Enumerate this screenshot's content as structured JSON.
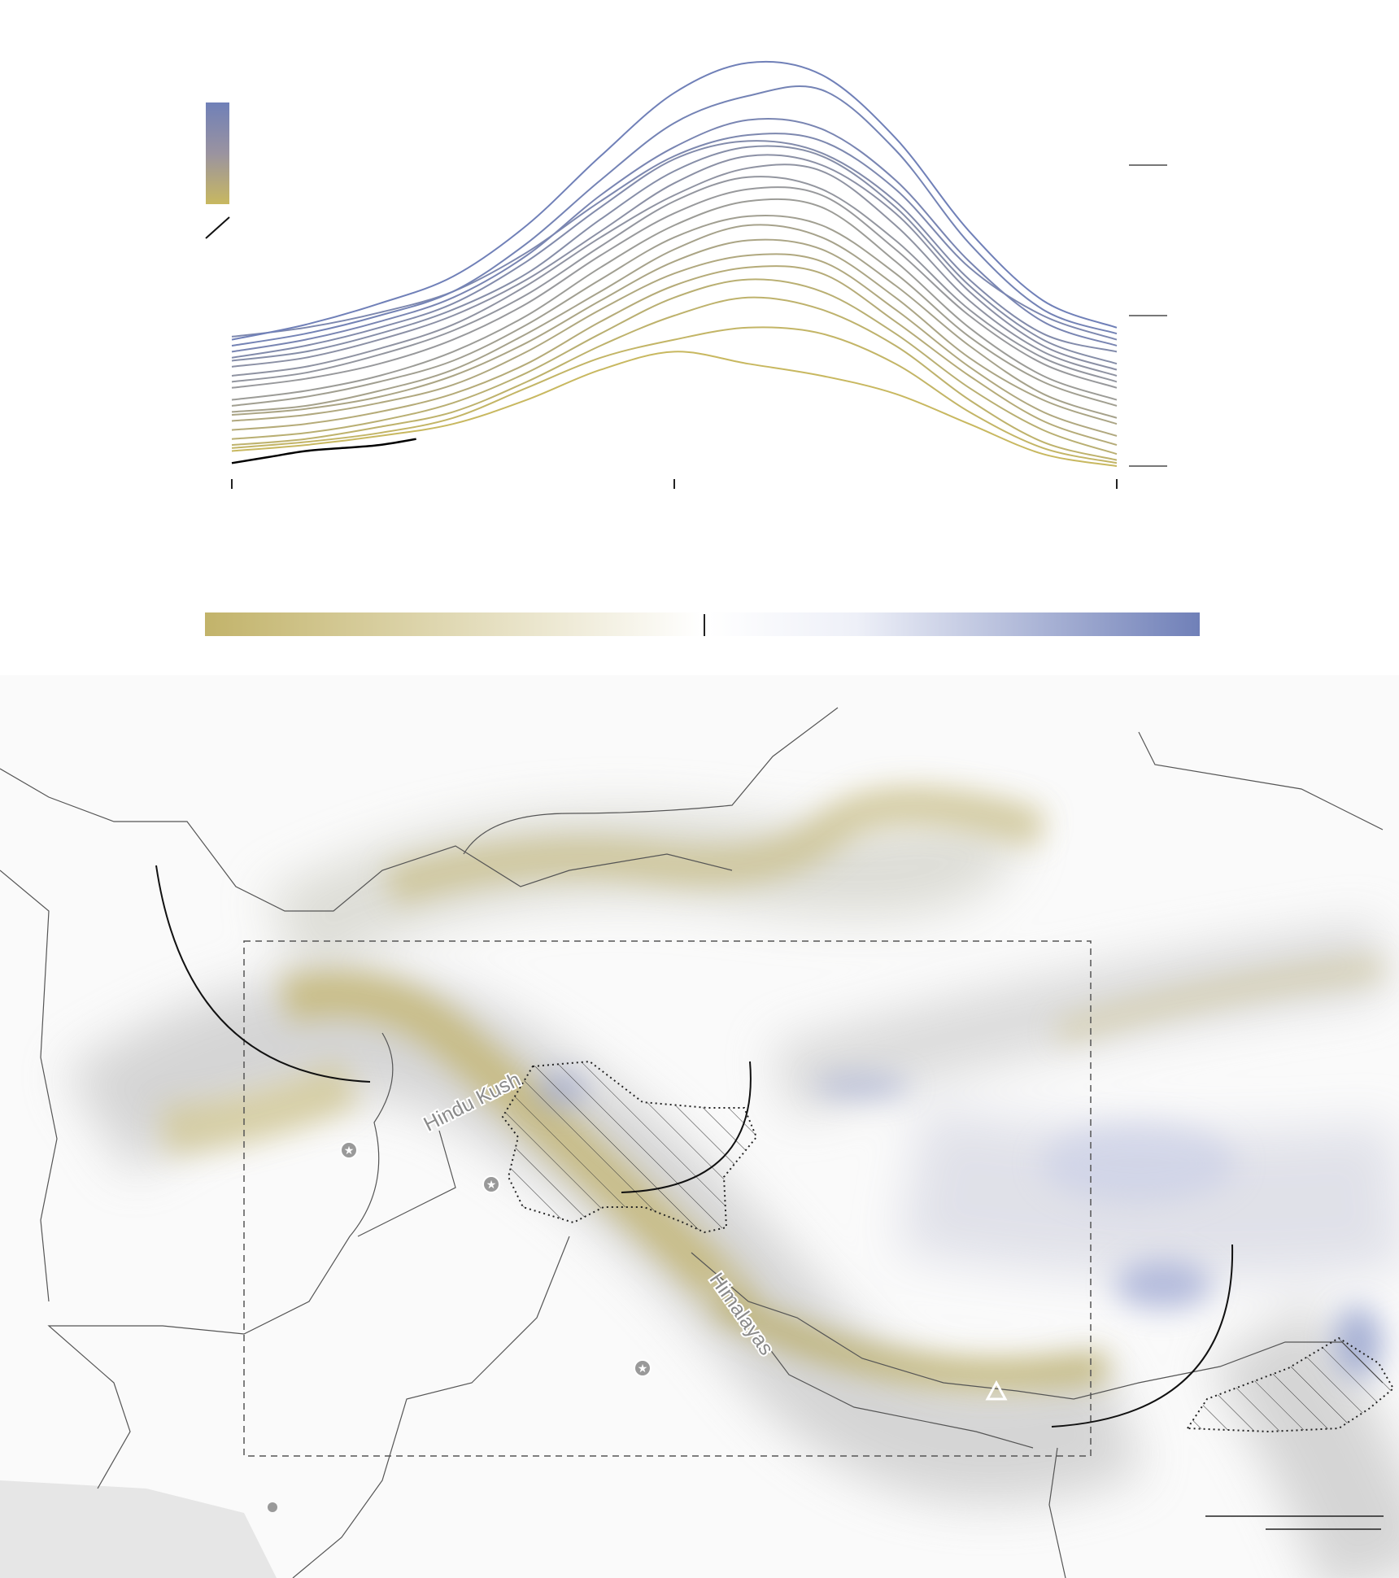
{
  "chart_data": {
    "type": "line",
    "title": "",
    "xlabel": "",
    "ylabel": "",
    "x": [
      0,
      1,
      2,
      3,
      4,
      5,
      6,
      7,
      8,
      9,
      10,
      11,
      12
    ],
    "ylim": [
      0,
      140
    ],
    "y_ticks": [
      0,
      50,
      100
    ],
    "x_ticks": [
      0,
      6,
      12
    ],
    "grid": false,
    "legend": "top-left color ramp (gold = low, blue = high)",
    "colors": {
      "low": "#c8b860",
      "mid": "#9a9a9a",
      "high": "#7080b8",
      "current": "#000000"
    },
    "series": [
      {
        "values": [
          42,
          47,
          54,
          63,
          80,
          103,
          124,
          134,
          130,
          109,
          78,
          55,
          46
        ]
      },
      {
        "values": [
          40,
          44,
          50,
          58,
          74,
          95,
          114,
          123,
          125,
          105,
          74,
          52,
          44
        ]
      },
      {
        "values": [
          38,
          42,
          48,
          56,
          70,
          90,
          106,
          115,
          112,
          95,
          68,
          48,
          40
        ]
      },
      {
        "values": [
          43,
          46,
          51,
          58,
          71,
          88,
          103,
          110,
          108,
          92,
          66,
          50,
          42
        ]
      },
      {
        "values": [
          36,
          40,
          46,
          54,
          68,
          86,
          102,
          108,
          104,
          88,
          62,
          44,
          38
        ]
      },
      {
        "values": [
          35,
          38,
          44,
          52,
          64,
          82,
          98,
          106,
          103,
          86,
          60,
          42,
          34
        ]
      },
      {
        "values": [
          33,
          36,
          42,
          50,
          62,
          78,
          94,
          103,
          100,
          84,
          58,
          40,
          32
        ]
      },
      {
        "values": [
          30,
          33,
          39,
          47,
          60,
          76,
          90,
          99,
          98,
          80,
          55,
          38,
          30
        ]
      },
      {
        "values": [
          28,
          31,
          37,
          45,
          57,
          73,
          88,
          96,
          92,
          75,
          52,
          36,
          28
        ]
      },
      {
        "values": [
          26,
          29,
          34,
          42,
          54,
          70,
          84,
          92,
          90,
          72,
          50,
          34,
          26
        ]
      },
      {
        "values": [
          22,
          25,
          30,
          38,
          50,
          66,
          80,
          88,
          86,
          68,
          46,
          30,
          22
        ]
      },
      {
        "values": [
          20,
          23,
          28,
          35,
          47,
          62,
          76,
          83,
          80,
          64,
          43,
          28,
          20
        ]
      },
      {
        "values": [
          18,
          20,
          25,
          32,
          44,
          58,
          72,
          80,
          76,
          60,
          40,
          24,
          16
        ]
      },
      {
        "values": [
          17,
          19,
          23,
          30,
          41,
          55,
          68,
          75,
          72,
          56,
          36,
          22,
          14
        ]
      },
      {
        "values": [
          15,
          17,
          21,
          27,
          38,
          52,
          64,
          70,
          68,
          52,
          33,
          18,
          10
        ]
      },
      {
        "values": [
          12,
          14,
          18,
          24,
          34,
          48,
          60,
          66,
          64,
          48,
          30,
          15,
          7
        ]
      },
      {
        "values": [
          9,
          11,
          15,
          21,
          31,
          44,
          56,
          62,
          58,
          44,
          26,
          12,
          4
        ]
      },
      {
        "values": [
          7,
          9,
          13,
          18,
          28,
          40,
          50,
          56,
          52,
          40,
          22,
          8,
          2
        ]
      },
      {
        "values": [
          6,
          8,
          11,
          16,
          26,
          36,
          42,
          46,
          44,
          34,
          18,
          6,
          1
        ]
      },
      {
        "values": [
          5,
          7,
          10,
          14,
          22,
          32,
          38,
          34,
          30,
          24,
          14,
          4,
          0
        ]
      }
    ],
    "current_series": {
      "x": [
        0,
        0.5,
        1,
        1.5,
        2,
        2.5
      ],
      "values": [
        1,
        3,
        5,
        6,
        7,
        9
      ]
    }
  },
  "colorbar": {
    "low_color": "#c2b36a",
    "mid_color": "#ffffff",
    "high_color": "#7080b8"
  },
  "map": {
    "labels": {
      "hindu_kush": "Hindu Kush",
      "himalayas": "Himalayas"
    },
    "colors": {
      "low": "#b5a655",
      "high": "#7585c0",
      "sea": "#e6e6e6"
    }
  }
}
